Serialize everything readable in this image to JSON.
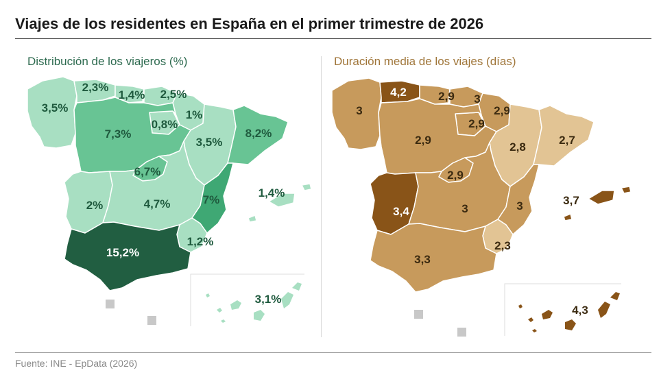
{
  "title": "Viajes de los residentes en España en el primer trimestre de 2026",
  "source": "Fuente: INE - EpData (2026)",
  "colors": {
    "green_light": "#a8dfc2",
    "green_mid": "#68c494",
    "green_strong": "#3fa874",
    "green_dark": "#215e41",
    "brown_light": "#e2c494",
    "brown_mid": "#c79a5c",
    "brown_dark": "#895418",
    "legend_square": "#c8c8c8"
  },
  "left_map": {
    "subtitle": "Distribución de los viajeros (%)",
    "regions": [
      {
        "name": "Galicia",
        "value": "3,5%"
      },
      {
        "name": "Asturias",
        "value": "2,3%"
      },
      {
        "name": "Cantabria",
        "value": "1,4%"
      },
      {
        "name": "País Vasco",
        "value": "2,5%"
      },
      {
        "name": "Navarra",
        "value": "1%"
      },
      {
        "name": "La Rioja",
        "value": "0,8%"
      },
      {
        "name": "Castilla y León",
        "value": "7,3%"
      },
      {
        "name": "Aragón",
        "value": "3,5%"
      },
      {
        "name": "Cataluña",
        "value": "8,2%"
      },
      {
        "name": "Madrid",
        "value": "6,7%"
      },
      {
        "name": "Extremadura",
        "value": "2%"
      },
      {
        "name": "Castilla-La Mancha",
        "value": "4,7%"
      },
      {
        "name": "Comunitat Valenciana",
        "value": "7%"
      },
      {
        "name": "Illes Balears",
        "value": "1,4%"
      },
      {
        "name": "Murcia",
        "value": "1,2%"
      },
      {
        "name": "Andalucía",
        "value": "15,2%"
      },
      {
        "name": "Canarias",
        "value": "3,1%"
      }
    ]
  },
  "right_map": {
    "subtitle": "Duración media de los viajes (días)",
    "regions": [
      {
        "name": "Galicia",
        "value": "3"
      },
      {
        "name": "Asturias",
        "value": "4,2"
      },
      {
        "name": "Cantabria",
        "value": "2,9"
      },
      {
        "name": "País Vasco",
        "value": "3"
      },
      {
        "name": "Navarra",
        "value": "2,9"
      },
      {
        "name": "La Rioja",
        "value": "2,9"
      },
      {
        "name": "Castilla y León",
        "value": "2,9"
      },
      {
        "name": "Aragón",
        "value": "2,8"
      },
      {
        "name": "Cataluña",
        "value": "2,7"
      },
      {
        "name": "Madrid",
        "value": "2,9"
      },
      {
        "name": "Extremadura",
        "value": "3,4"
      },
      {
        "name": "Castilla-La Mancha",
        "value": "3"
      },
      {
        "name": "Comunitat Valenciana",
        "value": "3"
      },
      {
        "name": "Illes Balears",
        "value": "3,7"
      },
      {
        "name": "Murcia",
        "value": "2,3"
      },
      {
        "name": "Andalucía",
        "value": "3,3"
      },
      {
        "name": "Canarias",
        "value": "4,3"
      }
    ]
  }
}
